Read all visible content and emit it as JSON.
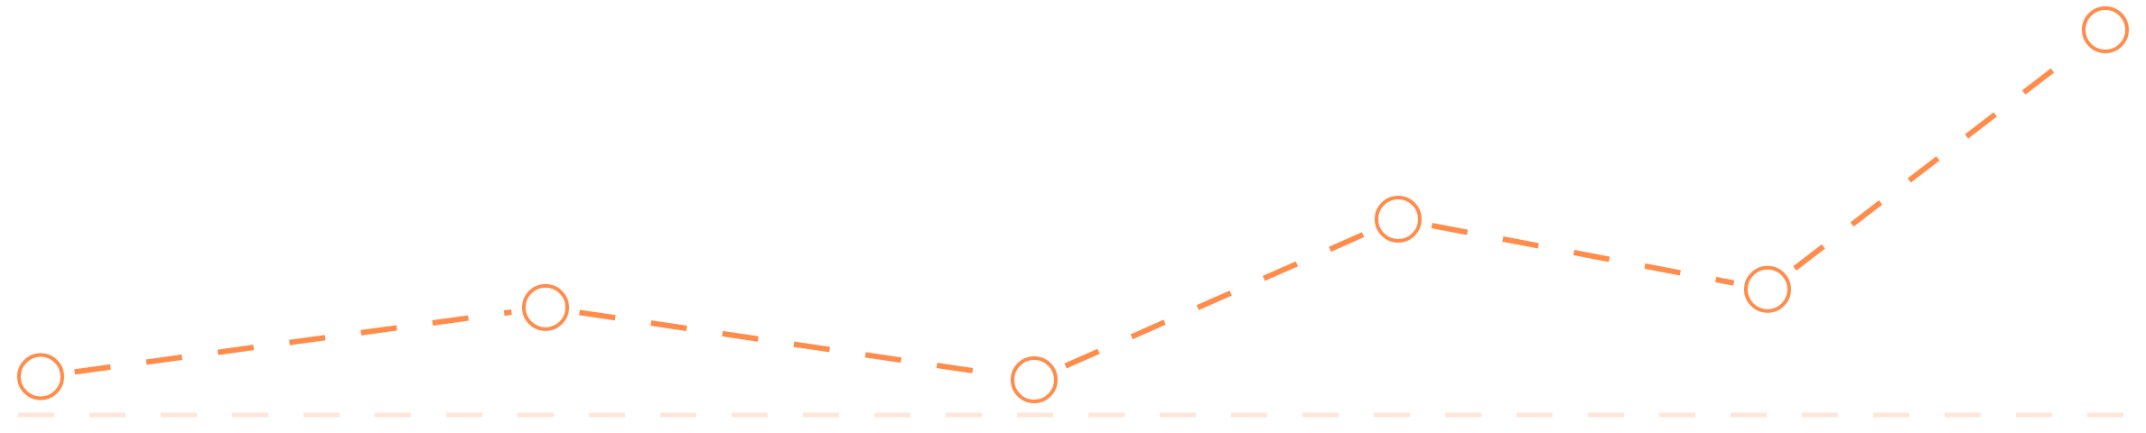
{
  "chart_data": {
    "type": "line",
    "x": [
      1,
      2,
      3,
      4,
      5,
      6
    ],
    "series": [
      {
        "values": [
          36,
          101,
          33,
          184,
          118,
          362
        ]
      }
    ],
    "ylim": [
      -17,
      390
    ],
    "grid": false,
    "legend": "none",
    "line_style": "dashed",
    "marker": "hollow-circle",
    "baseline": 0,
    "baseline_style": "dashed"
  },
  "colors": {
    "series": "#ff8c4a",
    "baseline": "#ffe6d8",
    "background": "#ffffff"
  }
}
